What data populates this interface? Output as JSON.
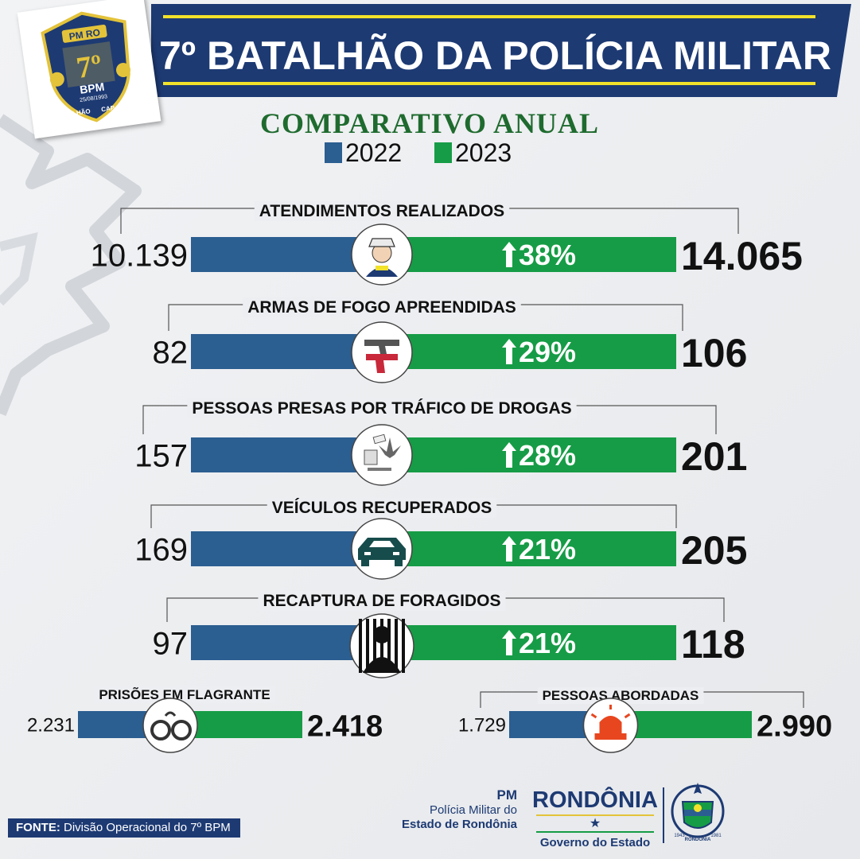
{
  "header": {
    "title": "7º BATALHÃO DA POLÍCIA MILITAR",
    "subtitle": "COMPARATIVO ANUAL"
  },
  "logo": {
    "top_text": "PM RO",
    "number": "7º",
    "abbr": "BPM",
    "date": "25/08/1993",
    "ribbon_left": "BATALHÃO",
    "ribbon_right": "CAP SILVIO"
  },
  "legend": [
    {
      "label": "2022",
      "color": "#2b5e91"
    },
    {
      "label": "2023",
      "color": "#169c46"
    }
  ],
  "chart_data": {
    "type": "bar",
    "title": "COMPARATIVO ANUAL",
    "series_names": [
      "2022",
      "2023"
    ],
    "colors": {
      "2022": "#2b5e91",
      "2023": "#169c46"
    },
    "categories": [
      {
        "label": "ATENDIMENTOS REALIZADOS",
        "v2022": 10139,
        "v2023": 14065,
        "v2022_text": "10.139",
        "v2023_text": "14.065",
        "change": "38%",
        "icon": "police-officer-icon"
      },
      {
        "label": "ARMAS DE FOGO APREENDIDAS",
        "v2022": 82,
        "v2023": 106,
        "v2022_text": "82",
        "v2023_text": "106",
        "change": "29%",
        "icon": "handgun-icon"
      },
      {
        "label": "PESSOAS PRESAS POR TRÁFICO DE DROGAS",
        "v2022": 157,
        "v2023": 201,
        "v2022_text": "157",
        "v2023_text": "201",
        "change": "28%",
        "icon": "drugs-icon"
      },
      {
        "label": "VEÍCULOS RECUPERADOS",
        "v2022": 169,
        "v2023": 205,
        "v2022_text": "169",
        "v2023_text": "205",
        "change": "21%",
        "icon": "car-icon"
      },
      {
        "label": "RECAPTURA DE FORAGIDOS",
        "v2022": 97,
        "v2023": 118,
        "v2022_text": "97",
        "v2023_text": "118",
        "change": "21%",
        "icon": "prisoner-behind-bars-icon"
      },
      {
        "label": "PRISÕES EM FLAGRANTE",
        "v2022": 2231,
        "v2023": 2418,
        "v2022_text": "2.231",
        "v2023_text": "2.418",
        "change": "",
        "icon": "handcuffs-icon"
      },
      {
        "label": "PESSOAS ABORDADAS",
        "v2022": 1729,
        "v2023": 2990,
        "v2022_text": "1.729",
        "v2023_text": "2.990",
        "change": "",
        "icon": "siren-icon"
      }
    ]
  },
  "footer": {
    "source_label": "FONTE:",
    "source_text": " Divisão Operacional do 7º BPM",
    "pm_abbr": "PM",
    "pm_line1": "Polícia Militar do",
    "pm_line2": "Estado de Rondônia",
    "gov_title": "RONDÔNIA",
    "gov_star": "★",
    "gov_sub": "Governo do Estado",
    "coat_text": "RONDÔNIA",
    "coat_year_left": "1943",
    "coat_year_right": "1981"
  }
}
